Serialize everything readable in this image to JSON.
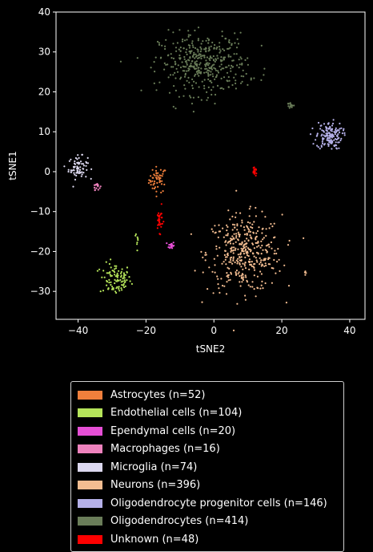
{
  "chart_data": {
    "type": "scatter",
    "title": "",
    "xlabel": "tSNE2",
    "ylabel": "tSNE1",
    "xlim": [
      -46.5,
      44.5
    ],
    "ylim": [
      -37,
      40
    ],
    "xticks": [
      -40,
      -20,
      0,
      20,
      40
    ],
    "yticks": [
      -30,
      -20,
      -10,
      0,
      10,
      20,
      30,
      40
    ],
    "tick_labels_x": [
      "−40",
      "−20",
      "0",
      "20",
      "40"
    ],
    "tick_labels_y": [
      "−30",
      "−20",
      "−10",
      "0",
      "10",
      "20",
      "30",
      "40"
    ],
    "grid": false,
    "legend_position": "below",
    "series": [
      {
        "name": "Astrocytes (n=52)",
        "color": "#f07f3c",
        "clusters": [
          {
            "cx": -16.5,
            "cy": -2,
            "sx": 1.3,
            "sy": 1.6,
            "n": 52
          }
        ]
      },
      {
        "name": "Endothelial cells (n=104)",
        "color": "#b5e45a",
        "clusters": [
          {
            "cx": -29,
            "cy": -27,
            "sx": 2.3,
            "sy": 2.0,
            "n": 96
          },
          {
            "cx": -22.5,
            "cy": -17.5,
            "sx": 0.6,
            "sy": 1.8,
            "n": 8
          }
        ]
      },
      {
        "name": "Ependymal cells (n=20)",
        "color": "#e64fd6",
        "clusters": [
          {
            "cx": -12.5,
            "cy": -18.5,
            "sx": 0.4,
            "sy": 0.5,
            "n": 20
          }
        ]
      },
      {
        "name": "Macrophages (n=16)",
        "color": "#ee82bd",
        "clusters": [
          {
            "cx": -34.5,
            "cy": -3.5,
            "sx": 0.5,
            "sy": 0.5,
            "n": 16
          }
        ]
      },
      {
        "name": "Microglia (n=74)",
        "color": "#dcd8ef",
        "clusters": [
          {
            "cx": -40,
            "cy": 1,
            "sx": 1.4,
            "sy": 1.4,
            "n": 74
          }
        ]
      },
      {
        "name": "Neurons (n=396)",
        "color": "#f3bd91",
        "clusters": [
          {
            "cx": 9,
            "cy": -20.5,
            "sx": 5.5,
            "sy": 4.8,
            "n": 392
          },
          {
            "cx": 27,
            "cy": -25,
            "sx": 0.4,
            "sy": 0.3,
            "n": 4
          }
        ]
      },
      {
        "name": "Oligodendrocyte progenitor cells (n=146)",
        "color": "#b5b0e8",
        "clusters": [
          {
            "cx": 34,
            "cy": 9,
            "sx": 1.9,
            "sy": 1.7,
            "n": 146
          }
        ]
      },
      {
        "name": "Oligodendrocytes (n=414)",
        "color": "#6a7d59",
        "clusters": [
          {
            "cx": -3,
            "cy": 27,
            "sx": 6.5,
            "sy": 3.8,
            "n": 400
          },
          {
            "cx": 22.5,
            "cy": 16.5,
            "sx": 0.6,
            "sy": 0.5,
            "n": 14
          }
        ]
      },
      {
        "name": "Unknown (n=48)",
        "color": "#ff0000",
        "clusters": [
          {
            "cx": -16,
            "cy": -12,
            "sx": 0.5,
            "sy": 1.5,
            "n": 28
          },
          {
            "cx": 12,
            "cy": 0,
            "sx": 0.3,
            "sy": 0.4,
            "n": 20
          }
        ]
      }
    ]
  }
}
